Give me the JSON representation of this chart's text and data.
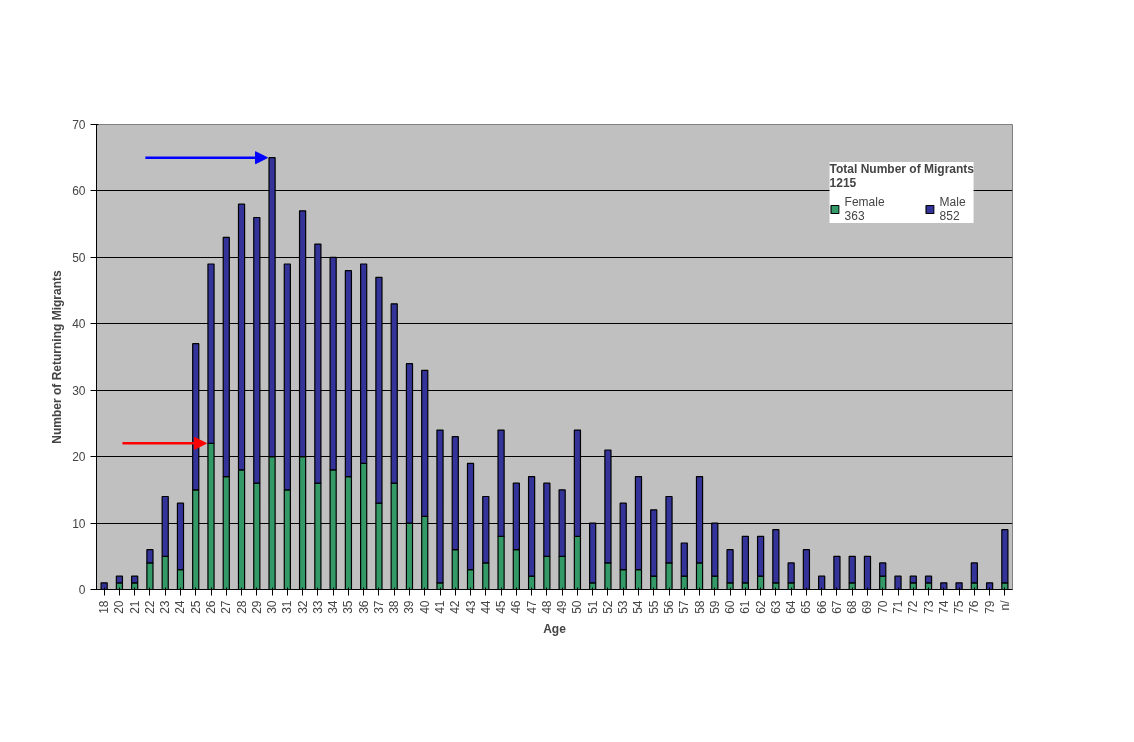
{
  "chart_data": {
    "type": "bar",
    "stacked": true,
    "xlabel": "Age",
    "ylabel": "Number of Returning Migrants",
    "legend_title": "Total Number of Migrants\n1215",
    "legend": "top right",
    "grid": "y",
    "categories": [
      "18",
      "20",
      "21",
      "22",
      "23",
      "24",
      "25",
      "26",
      "27",
      "28",
      "29",
      "30",
      "31",
      "32",
      "33",
      "34",
      "35",
      "36",
      "37",
      "38",
      "39",
      "40",
      "41",
      "42",
      "43",
      "44",
      "45",
      "46",
      "47",
      "48",
      "49",
      "50",
      "51",
      "52",
      "53",
      "54",
      "55",
      "56",
      "57",
      "58",
      "59",
      "60",
      "61",
      "62",
      "63",
      "64",
      "65",
      "66",
      "67",
      "68",
      "69",
      "70",
      "71",
      "72",
      "73",
      "74",
      "75",
      "76",
      "79",
      "n/"
    ],
    "series": [
      {
        "name": "Female",
        "color": "#339966",
        "values": [
          0,
          1,
          1,
          4,
          5,
          3,
          15,
          22,
          17,
          18,
          16,
          20,
          15,
          20,
          16,
          18,
          17,
          19,
          13,
          16,
          10,
          11,
          1,
          6,
          3,
          4,
          8,
          6,
          2,
          5,
          5,
          8,
          1,
          4,
          3,
          3,
          2,
          4,
          2,
          4,
          2,
          1,
          1,
          2,
          1,
          1,
          0,
          0,
          0,
          1,
          0,
          2,
          0,
          1,
          1,
          0,
          0,
          1,
          0,
          1
        ]
      },
      {
        "name": "Male",
        "color": "#333399",
        "values": [
          1,
          1,
          1,
          2,
          9,
          10,
          22,
          27,
          36,
          40,
          40,
          45,
          34,
          37,
          36,
          32,
          31,
          30,
          34,
          27,
          24,
          22,
          23,
          17,
          16,
          10,
          16,
          10,
          15,
          11,
          10,
          16,
          9,
          17,
          10,
          14,
          10,
          10,
          5,
          13,
          8,
          5,
          7,
          6,
          8,
          3,
          6,
          2,
          5,
          4,
          5,
          2,
          2,
          1,
          1,
          1,
          1,
          3,
          1,
          8
        ]
      }
    ],
    "ylim": [
      0,
      70
    ],
    "yticks": [
      0,
      10,
      20,
      30,
      40,
      50,
      60,
      70
    ],
    "annotations": [
      "363",
      "852"
    ]
  }
}
